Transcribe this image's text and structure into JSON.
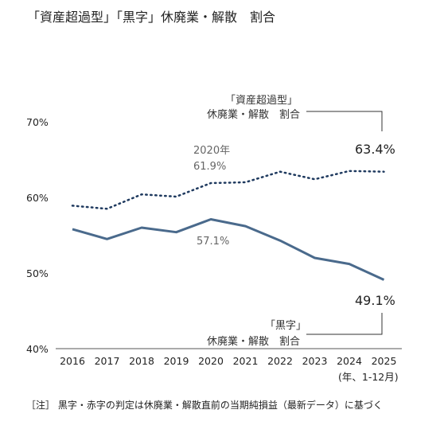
{
  "chart_data": {
    "type": "line",
    "title": "「資産超過型」「黒字」休廃業・解散　割合",
    "x": [
      "2016",
      "2017",
      "2018",
      "2019",
      "2020",
      "2021",
      "2022",
      "2023",
      "2024",
      "2025"
    ],
    "xunit": "(年、1-12月)",
    "ylim": [
      40,
      70
    ],
    "yticks": [
      "40%",
      "50%",
      "60%",
      "70%"
    ],
    "grid": false,
    "series": [
      {
        "name": "「資産超過型」休廃業・解散 割合",
        "label_lines": [
          "「資産超過型」",
          "休廃業・解散　割合"
        ],
        "style": "dotted",
        "color": "#1f3a5f",
        "values": [
          58.9,
          58.5,
          60.4,
          60.1,
          61.9,
          62.0,
          63.4,
          62.4,
          63.5,
          63.4
        ]
      },
      {
        "name": "「黒字」休廃業・解散 割合",
        "label_lines": [
          "「黒字」",
          "休廃業・解散　割合"
        ],
        "style": "solid",
        "color": "#4a6a8c",
        "values": [
          55.8,
          54.5,
          56.0,
          55.4,
          57.1,
          56.2,
          54.3,
          52.0,
          51.2,
          49.1
        ]
      }
    ],
    "annotations": {
      "dotted_2020_year": "2020年",
      "dotted_2020_value": "61.9%",
      "solid_2020_value": "57.1%",
      "dotted_last_value": "63.4%",
      "solid_last_value": "49.1%"
    },
    "note": "［注］ 黒字・赤字の判定は休廃業・解散直前の当期純損益（最新データ）に基づく"
  }
}
